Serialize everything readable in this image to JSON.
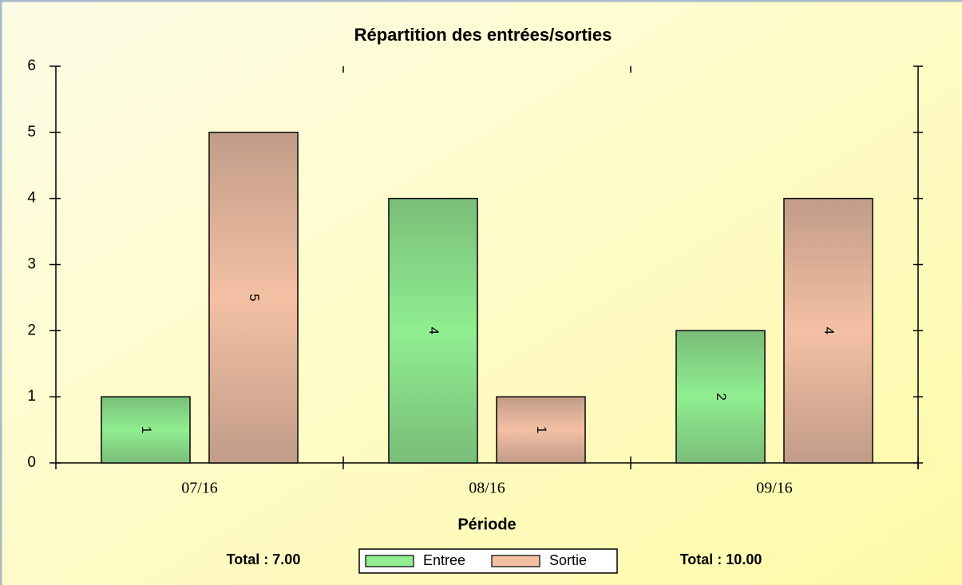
{
  "chart_data": {
    "type": "bar",
    "title": "Répartition des entrées/sorties",
    "x_label": "Période",
    "categories": [
      "07/16",
      "08/16",
      "09/16"
    ],
    "series": [
      {
        "name": "Entree",
        "color": "#90ee90",
        "values": [
          1,
          4,
          2
        ]
      },
      {
        "name": "Sortie",
        "color": "#f4c0a4",
        "values": [
          5,
          1,
          4
        ]
      }
    ],
    "ylim": [
      0,
      6
    ],
    "yticks": [
      0,
      1,
      2,
      3,
      4,
      5,
      6
    ],
    "annotations": [
      "Total : 7.00",
      "Total : 10.00"
    ],
    "legend": "bottom"
  }
}
